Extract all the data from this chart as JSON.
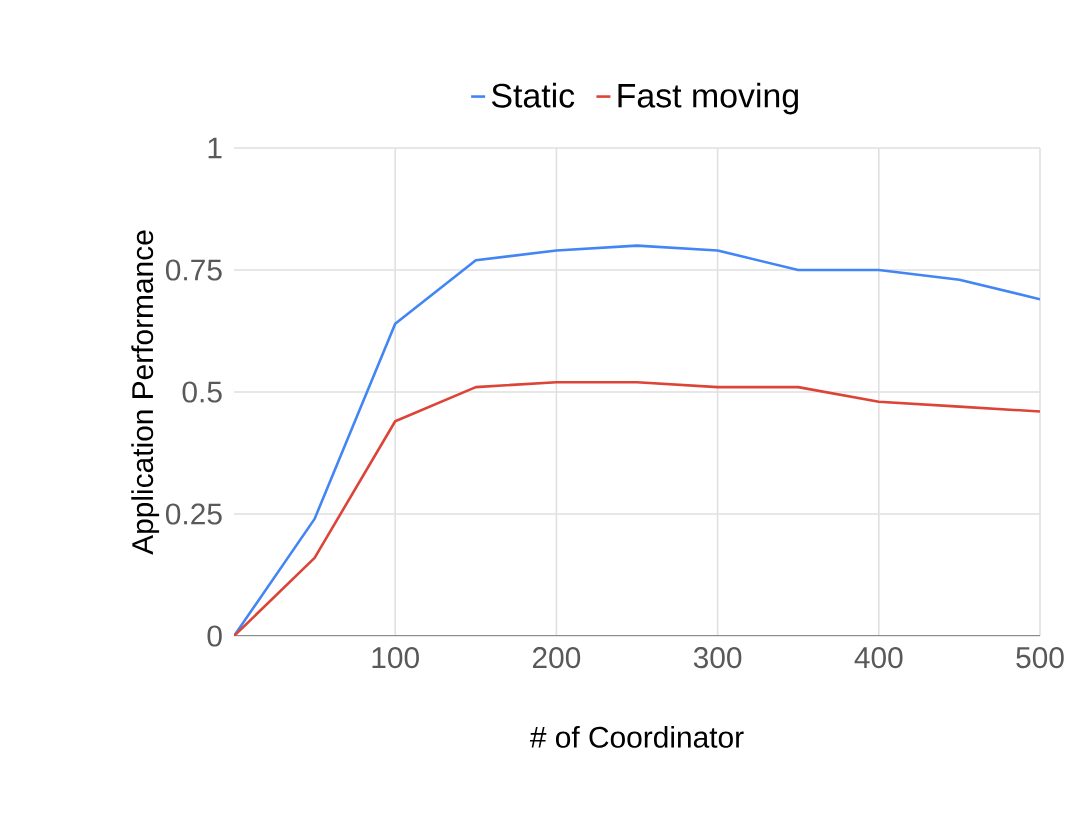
{
  "chart_data": {
    "type": "line",
    "xlabel": "# of Coordinator",
    "ylabel": "Application Performance",
    "x": [
      0,
      50,
      100,
      150,
      200,
      250,
      300,
      350,
      400,
      450,
      500
    ],
    "series": [
      {
        "name": "Static",
        "color": "#4285f4",
        "values": [
          0,
          0.24,
          0.64,
          0.77,
          0.79,
          0.8,
          0.79,
          0.75,
          0.75,
          0.73,
          0.69
        ]
      },
      {
        "name": "Fast moving",
        "color": "#db4437",
        "values": [
          0,
          0.16,
          0.44,
          0.51,
          0.52,
          0.52,
          0.51,
          0.51,
          0.48,
          0.47,
          0.46
        ]
      }
    ],
    "xlim": [
      0,
      500
    ],
    "xticks": [
      100,
      200,
      300,
      400,
      500
    ],
    "ylim": [
      0,
      1
    ],
    "yticks": [
      0,
      0.25,
      0.5,
      0.75,
      1
    ],
    "grid": true,
    "legend": "top",
    "marker": "none",
    "line_style": "solid"
  }
}
